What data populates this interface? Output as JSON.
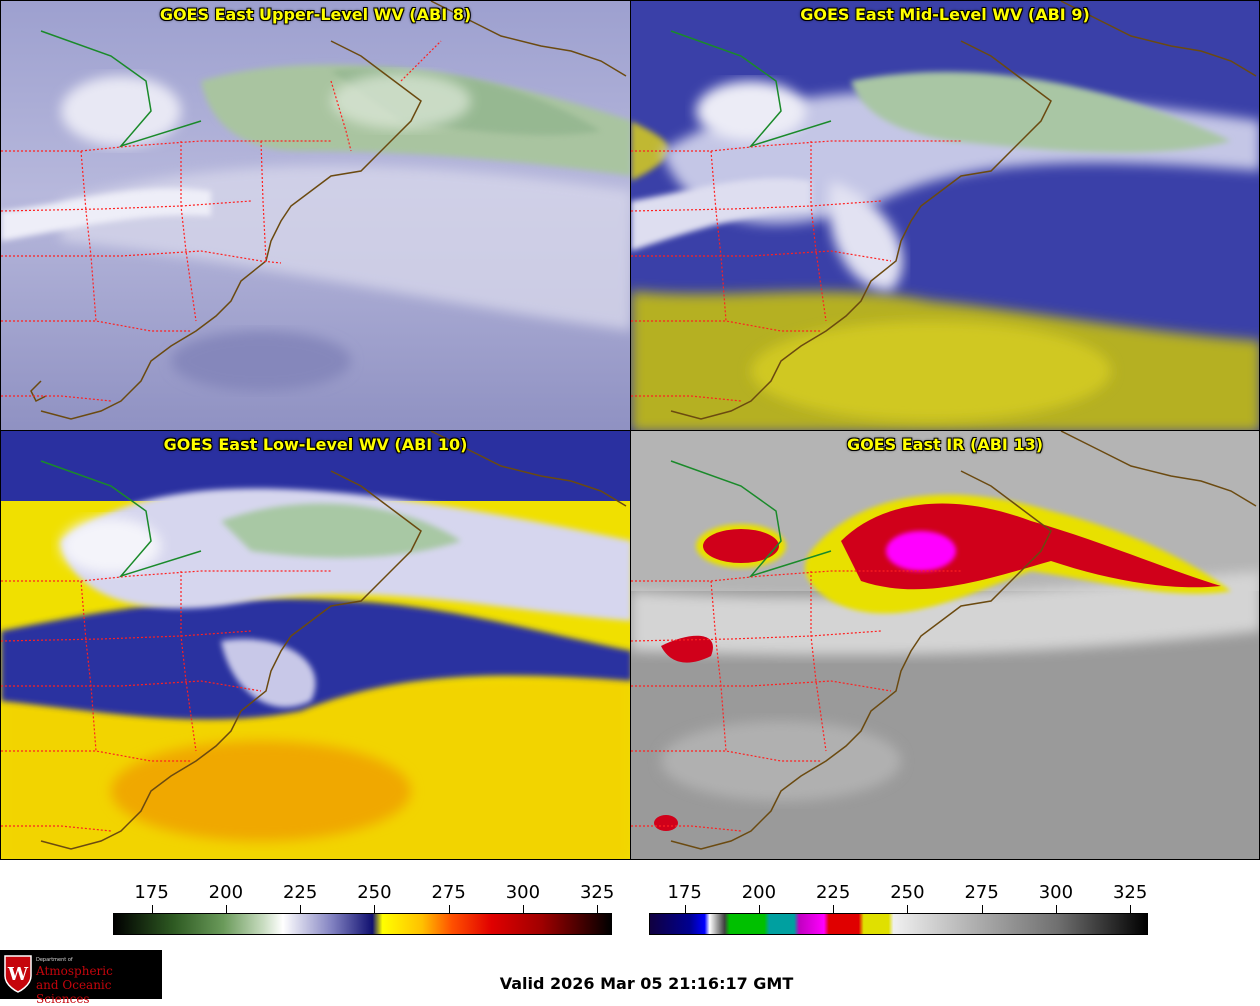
{
  "panels": {
    "upper": {
      "title": "GOES East Upper-Level WV (ABI 8)",
      "colormap": "wv"
    },
    "mid": {
      "title": "GOES East Mid-Level WV (ABI 9)",
      "colormap": "wv"
    },
    "low": {
      "title": "GOES East Low-Level WV (ABI 10)",
      "colormap": "wv"
    },
    "ir": {
      "title": "GOES East IR (ABI 13)",
      "colormap": "ir"
    }
  },
  "colorbars": {
    "wv": {
      "ticks": [
        "175",
        "200",
        "225",
        "250",
        "275",
        "300",
        "325"
      ],
      "range": [
        162,
        330
      ]
    },
    "ir": {
      "ticks": [
        "175",
        "200",
        "225",
        "250",
        "275",
        "300",
        "325"
      ],
      "range": [
        163,
        331
      ]
    }
  },
  "valid_time": "Valid 2026 Mar 05 21:16:17 GMT",
  "logo": {
    "dept": "Department of",
    "line1": "Atmospheric",
    "line2": "and Oceanic Sciences"
  },
  "colors": {
    "wv_background": "#a8a9d0",
    "moist_green": "#7a9a6a",
    "dry_yellow": "#d8d000",
    "ir_cold_red": "#d0001a",
    "ir_magenta": "#ff00ff",
    "state_borders": "#ff2020",
    "coastlines": "#6b4a10",
    "canada_border": "#1a8a2a"
  }
}
